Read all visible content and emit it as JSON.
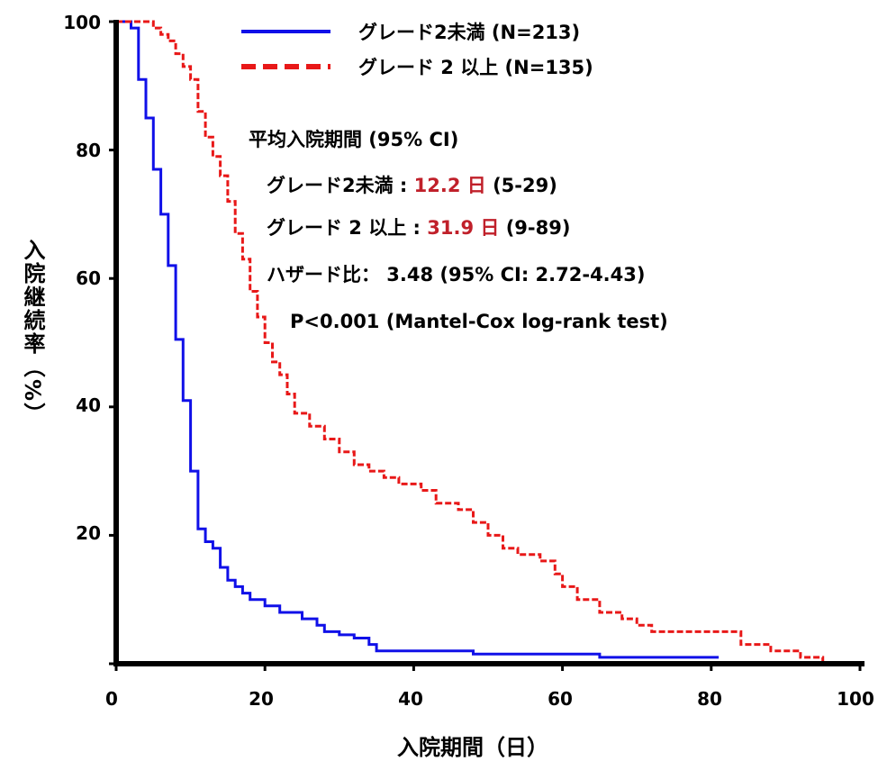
{
  "chart_data": {
    "type": "line",
    "subtype": "kaplan-meier-step",
    "xlabel": "入院期間（日）",
    "ylabel": "入院継続率（%）",
    "xlim": [
      0,
      100
    ],
    "ylim": [
      0,
      100
    ],
    "x_ticks": [
      "0",
      "20",
      "40",
      "60",
      "80",
      "100"
    ],
    "y_ticks": [
      "",
      "20",
      "40",
      "60",
      "80",
      "100"
    ],
    "grid": false,
    "legend_position": "top-right",
    "series": [
      {
        "name": "グレード2未満 (N=213)",
        "color": "#1010e8",
        "line_style": "solid",
        "points": [
          [
            0,
            100
          ],
          [
            2,
            100
          ],
          [
            2,
            99
          ],
          [
            3,
            99
          ],
          [
            3,
            95
          ],
          [
            3,
            95
          ],
          [
            3,
            91
          ],
          [
            4,
            91
          ],
          [
            4,
            88
          ],
          [
            4,
            88
          ],
          [
            4,
            85
          ],
          [
            5,
            85
          ],
          [
            5,
            81
          ],
          [
            5,
            81
          ],
          [
            5,
            77
          ],
          [
            6,
            77
          ],
          [
            6,
            74
          ],
          [
            6,
            74
          ],
          [
            6,
            70
          ],
          [
            7,
            70
          ],
          [
            7,
            66
          ],
          [
            7,
            66
          ],
          [
            7,
            62
          ],
          [
            8,
            62
          ],
          [
            8,
            58
          ],
          [
            8,
            58
          ],
          [
            8,
            54
          ],
          [
            8,
            54
          ],
          [
            8,
            50.5
          ],
          [
            9,
            50.5
          ],
          [
            9,
            46
          ],
          [
            9,
            46
          ],
          [
            9,
            41
          ],
          [
            10,
            41
          ],
          [
            10,
            37
          ],
          [
            10,
            37
          ],
          [
            10,
            30
          ],
          [
            11,
            30
          ],
          [
            11,
            26
          ],
          [
            11,
            26
          ],
          [
            11,
            21
          ],
          [
            12,
            21
          ],
          [
            12,
            19
          ],
          [
            13,
            19
          ],
          [
            13,
            18
          ],
          [
            14,
            18
          ],
          [
            14,
            17
          ],
          [
            14,
            17
          ],
          [
            14,
            15
          ],
          [
            15,
            15
          ],
          [
            15,
            13
          ],
          [
            16,
            13
          ],
          [
            16,
            12
          ],
          [
            17,
            12
          ],
          [
            17,
            11
          ],
          [
            18,
            11
          ],
          [
            18,
            10
          ],
          [
            20,
            10
          ],
          [
            20,
            9
          ],
          [
            22,
            9
          ],
          [
            22,
            8
          ],
          [
            25,
            8
          ],
          [
            25,
            7
          ],
          [
            27,
            7
          ],
          [
            27,
            6
          ],
          [
            28,
            6
          ],
          [
            28,
            5
          ],
          [
            30,
            5
          ],
          [
            30,
            4.5
          ],
          [
            32,
            4.5
          ],
          [
            32,
            4
          ],
          [
            34,
            4
          ],
          [
            34,
            3
          ],
          [
            35,
            3
          ],
          [
            35,
            2
          ],
          [
            48,
            2
          ],
          [
            48,
            1.5
          ],
          [
            65,
            1.5
          ],
          [
            65,
            1
          ],
          [
            81,
            1
          ]
        ]
      },
      {
        "name": "グレード 2 以上 (N=135)",
        "color": "#e81818",
        "line_style": "dashed",
        "points": [
          [
            0,
            100
          ],
          [
            5,
            100
          ],
          [
            5,
            99
          ],
          [
            6,
            99
          ],
          [
            6,
            98
          ],
          [
            7,
            98
          ],
          [
            7,
            97
          ],
          [
            8,
            97
          ],
          [
            8,
            95
          ],
          [
            9,
            95
          ],
          [
            9,
            93
          ],
          [
            10,
            93
          ],
          [
            10,
            91
          ],
          [
            11,
            91
          ],
          [
            11,
            90
          ],
          [
            11,
            90
          ],
          [
            11,
            86
          ],
          [
            12,
            86
          ],
          [
            12,
            82
          ],
          [
            13,
            82
          ],
          [
            13,
            79
          ],
          [
            14,
            79
          ],
          [
            14,
            76
          ],
          [
            15,
            76
          ],
          [
            15,
            72
          ],
          [
            16,
            72
          ],
          [
            16,
            67
          ],
          [
            17,
            67
          ],
          [
            17,
            63
          ],
          [
            18,
            63
          ],
          [
            18,
            58
          ],
          [
            19,
            58
          ],
          [
            19,
            54
          ],
          [
            20,
            54
          ],
          [
            20,
            50
          ],
          [
            21,
            50
          ],
          [
            21,
            47
          ],
          [
            22,
            47
          ],
          [
            22,
            45
          ],
          [
            23,
            45
          ],
          [
            23,
            42
          ],
          [
            24,
            42
          ],
          [
            24,
            39
          ],
          [
            26,
            39
          ],
          [
            26,
            37
          ],
          [
            28,
            37
          ],
          [
            28,
            35
          ],
          [
            30,
            35
          ],
          [
            30,
            33
          ],
          [
            32,
            33
          ],
          [
            32,
            31
          ],
          [
            34,
            31
          ],
          [
            34,
            30
          ],
          [
            36,
            30
          ],
          [
            36,
            29
          ],
          [
            38,
            29
          ],
          [
            38,
            28
          ],
          [
            41,
            28
          ],
          [
            41,
            27
          ],
          [
            43,
            27
          ],
          [
            43,
            25
          ],
          [
            46,
            25
          ],
          [
            46,
            24
          ],
          [
            48,
            24
          ],
          [
            48,
            22
          ],
          [
            50,
            22
          ],
          [
            50,
            20
          ],
          [
            52,
            20
          ],
          [
            52,
            18
          ],
          [
            54,
            18
          ],
          [
            54,
            17
          ],
          [
            57,
            17
          ],
          [
            57,
            16
          ],
          [
            59,
            16
          ],
          [
            59,
            14
          ],
          [
            60,
            14
          ],
          [
            60,
            12
          ],
          [
            62,
            12
          ],
          [
            62,
            10
          ],
          [
            65,
            10
          ],
          [
            65,
            8
          ],
          [
            68,
            8
          ],
          [
            68,
            7
          ],
          [
            70,
            7
          ],
          [
            70,
            6
          ],
          [
            72,
            6
          ],
          [
            72,
            5
          ],
          [
            74,
            5
          ],
          [
            84,
            5
          ],
          [
            84,
            3
          ],
          [
            88,
            3
          ],
          [
            88,
            2
          ],
          [
            92,
            2
          ],
          [
            92,
            1
          ],
          [
            95,
            1
          ],
          [
            95,
            0
          ],
          [
            97,
            0
          ]
        ]
      }
    ],
    "legend": [
      "グレード2未満 (N=213)",
      "グレード 2 以上 (N=135)"
    ],
    "annotations": {
      "title": "平均入院期間 (95% CI)",
      "row1_label": "グレード2未満 : ",
      "row1_value": "12.2 日",
      "row1_ci": " (5-29)",
      "row2_label": "グレード 2 以上 : ",
      "row2_value": "31.9 日",
      "row2_ci": " (9-89)",
      "hazard": "ハザード比： 3.48 (95% CI: 2.72-4.43)",
      "pvalue": "P<0.001 (Mantel-Cox log-rank test)"
    },
    "colors": {
      "axis": "#000000",
      "highlight_value": "#c0202a"
    }
  }
}
